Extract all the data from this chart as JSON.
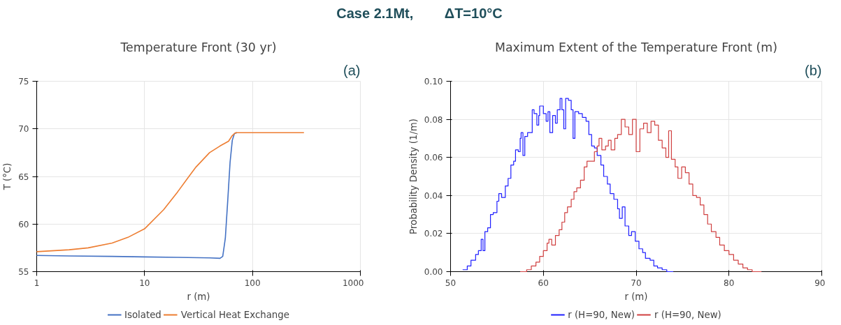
{
  "chart_data": [
    {
      "type": "line",
      "title": "Temperature Front (30 yr)",
      "xlabel": "r (m)",
      "ylabel": "T (°C)",
      "annotations": [
        "Case 2.1Mt,        ΔT=10°C",
        "(a)"
      ],
      "log": "x",
      "xlim": [
        1,
        1000
      ],
      "xticks": [
        1,
        10,
        100,
        1000
      ],
      "ylim": [
        55,
        75
      ],
      "yticks": [
        55,
        60,
        65,
        70,
        75
      ],
      "grid": true,
      "legend": "bottom",
      "series": [
        {
          "name": "Isolated",
          "color": "#4472c4",
          "x": [
            1,
            2,
            5,
            10,
            20,
            40,
            50,
            53,
            56,
            59,
            62,
            65,
            68,
            72
          ],
          "values": [
            56.7,
            56.65,
            56.6,
            56.55,
            56.5,
            56.45,
            56.4,
            56.6,
            58.5,
            62.5,
            66.5,
            68.8,
            69.5,
            69.6
          ]
        },
        {
          "name": "Vertical Heat Exchange",
          "color": "#ed7d31",
          "x": [
            1,
            2,
            3,
            5,
            7,
            10,
            15,
            20,
            25,
            30,
            40,
            50,
            60,
            65,
            70,
            100,
            300
          ],
          "values": [
            57.1,
            57.3,
            57.5,
            58.0,
            58.6,
            59.5,
            61.5,
            63.3,
            64.8,
            66.0,
            67.5,
            68.2,
            68.7,
            69.3,
            69.6,
            69.6,
            69.6
          ]
        }
      ]
    },
    {
      "type": "step",
      "title": "Maximum Extent of the Temperature Front (m)",
      "xlabel": "r (m)",
      "ylabel": "Probability Density (1/m)",
      "annotations": [
        "(b)"
      ],
      "xlim": [
        50,
        90
      ],
      "xticks": [
        50,
        60,
        70,
        80,
        90
      ],
      "ylim": [
        0,
        0.1
      ],
      "yticks": [
        {
          "value": 0,
          "label": "0.00"
        },
        {
          "value": 0.02,
          "label": "0.02"
        },
        {
          "value": 0.04,
          "label": "0.04"
        },
        {
          "value": 0.06,
          "label": "0.06"
        },
        {
          "value": 0.08,
          "label": "0.08"
        },
        {
          "value": 0.1,
          "label": "0.10"
        }
      ],
      "grid": true,
      "legend": "bottom",
      "series": [
        {
          "name": "r (H=90, New)",
          "color": "#2020ff",
          "x": [
            51.3,
            51.8,
            52.2,
            52.7,
            53.0,
            53.3,
            53.5,
            53.7,
            54.0,
            54.3,
            54.6,
            55.0,
            55.2,
            55.5,
            55.9,
            56.2,
            56.5,
            56.8,
            57.0,
            57.3,
            57.5,
            57.6,
            57.8,
            58.0,
            58.3,
            58.6,
            58.8,
            59.0,
            59.3,
            59.5,
            59.6,
            60.0,
            60.3,
            60.5,
            60.7,
            61.0,
            61.3,
            61.5,
            61.8,
            62.0,
            62.2,
            62.4,
            62.7,
            63.0,
            63.2,
            63.4,
            63.8,
            64.2,
            64.6,
            64.9,
            65.2,
            65.5,
            65.8,
            66.2,
            66.5,
            66.9,
            67.2,
            67.6,
            68.0,
            68.2,
            68.5,
            68.8,
            69.2,
            69.5,
            69.9,
            70.3,
            70.7,
            71.0,
            71.5,
            71.9,
            72.3,
            72.8,
            73.3,
            74.0
          ],
          "values": [
            0.001,
            0.003,
            0.006,
            0.009,
            0.011,
            0.017,
            0.011,
            0.021,
            0.023,
            0.03,
            0.031,
            0.037,
            0.041,
            0.039,
            0.045,
            0.049,
            0.056,
            0.058,
            0.064,
            0.063,
            0.07,
            0.073,
            0.061,
            0.071,
            0.073,
            0.073,
            0.085,
            0.083,
            0.077,
            0.082,
            0.087,
            0.083,
            0.079,
            0.084,
            0.073,
            0.082,
            0.078,
            0.085,
            0.091,
            0.085,
            0.075,
            0.091,
            0.09,
            0.085,
            0.07,
            0.084,
            0.083,
            0.081,
            0.079,
            0.072,
            0.066,
            0.065,
            0.061,
            0.056,
            0.05,
            0.046,
            0.041,
            0.038,
            0.033,
            0.028,
            0.034,
            0.024,
            0.019,
            0.021,
            0.016,
            0.012,
            0.01,
            0.007,
            0.006,
            0.003,
            0.002,
            0.001,
            0.0,
            0.0
          ]
        },
        {
          "name": "r (H=90, New)",
          "color": "#d04040",
          "x": [
            57.5,
            58.2,
            58.7,
            59.2,
            59.6,
            60.0,
            60.4,
            60.6,
            60.9,
            61.3,
            61.7,
            62.0,
            62.3,
            62.6,
            63.0,
            63.3,
            63.6,
            64.0,
            64.4,
            64.7,
            65.1,
            65.5,
            65.8,
            66.0,
            66.3,
            66.7,
            67.0,
            67.3,
            67.7,
            68.0,
            68.4,
            68.8,
            69.2,
            69.6,
            70.0,
            70.4,
            70.8,
            71.2,
            71.6,
            72.0,
            72.4,
            72.8,
            73.2,
            73.5,
            73.8,
            74.2,
            74.5,
            74.9,
            75.3,
            75.7,
            76.1,
            76.5,
            76.9,
            77.3,
            77.7,
            78.1,
            78.6,
            79.0,
            79.5,
            80.0,
            80.5,
            81.0,
            81.5,
            82.0,
            82.5,
            83.5
          ],
          "values": [
            0.0,
            0.001,
            0.003,
            0.005,
            0.008,
            0.011,
            0.015,
            0.017,
            0.014,
            0.019,
            0.022,
            0.026,
            0.031,
            0.034,
            0.038,
            0.042,
            0.044,
            0.048,
            0.055,
            0.058,
            0.058,
            0.063,
            0.066,
            0.07,
            0.064,
            0.066,
            0.069,
            0.064,
            0.07,
            0.072,
            0.08,
            0.076,
            0.072,
            0.08,
            0.063,
            0.075,
            0.078,
            0.073,
            0.079,
            0.077,
            0.069,
            0.065,
            0.06,
            0.074,
            0.059,
            0.055,
            0.049,
            0.055,
            0.052,
            0.046,
            0.04,
            0.039,
            0.035,
            0.03,
            0.025,
            0.021,
            0.018,
            0.014,
            0.011,
            0.009,
            0.006,
            0.004,
            0.002,
            0.001,
            0.0,
            0.0
          ]
        }
      ]
    }
  ]
}
